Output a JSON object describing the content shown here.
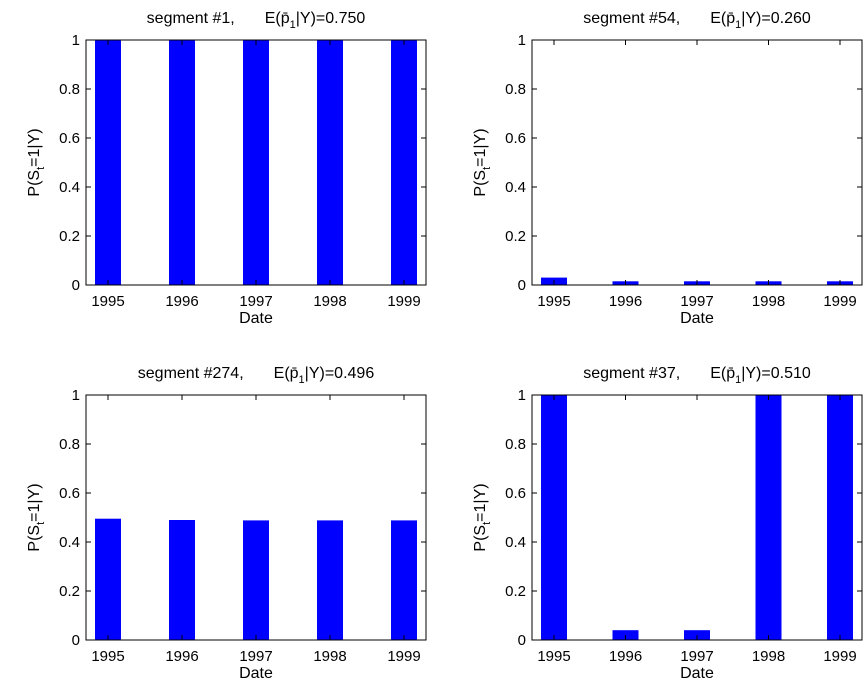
{
  "chart_data": [
    {
      "type": "bar",
      "title_prefix": "segment #1,",
      "title_expr": "E(p̄",
      "title_sub": "1",
      "title_suffix": "|Y)=0.750",
      "xlabel": "Date",
      "ylabel": "P(S",
      "ylabel_sub": "t",
      "ylabel_suffix": "=1|Y)",
      "categories": [
        "1995",
        "1996",
        "1997",
        "1998",
        "1999"
      ],
      "values": [
        1.0,
        1.0,
        1.0,
        1.0,
        1.0
      ],
      "ylim": [
        0,
        1
      ],
      "yticks": [
        "0",
        "0.2",
        "0.4",
        "0.6",
        "0.8",
        "1"
      ],
      "bar_color": "#0000ff"
    },
    {
      "type": "bar",
      "title_prefix": "segment #54,",
      "title_expr": "E(p̄",
      "title_sub": "1",
      "title_suffix": "|Y)=0.260",
      "xlabel": "Date",
      "ylabel": "P(S",
      "ylabel_sub": "t",
      "ylabel_suffix": "=1|Y)",
      "categories": [
        "1995",
        "1996",
        "1997",
        "1998",
        "1999"
      ],
      "values": [
        0.03,
        0.015,
        0.015,
        0.015,
        0.015
      ],
      "ylim": [
        0,
        1
      ],
      "yticks": [
        "0",
        "0.2",
        "0.4",
        "0.6",
        "0.8",
        "1"
      ],
      "bar_color": "#0000ff"
    },
    {
      "type": "bar",
      "title_prefix": "segment #274,",
      "title_expr": "E(p̄",
      "title_sub": "1",
      "title_suffix": "|Y)=0.496",
      "xlabel": "Date",
      "ylabel": "P(S",
      "ylabel_sub": "t",
      "ylabel_suffix": "=1|Y)",
      "categories": [
        "1995",
        "1996",
        "1997",
        "1998",
        "1999"
      ],
      "values": [
        0.495,
        0.49,
        0.488,
        0.488,
        0.488
      ],
      "ylim": [
        0,
        1
      ],
      "yticks": [
        "0",
        "0.2",
        "0.4",
        "0.6",
        "0.8",
        "1"
      ],
      "bar_color": "#0000ff"
    },
    {
      "type": "bar",
      "title_prefix": "segment #37,",
      "title_expr": "E(p̄",
      "title_sub": "1",
      "title_suffix": "|Y)=0.510",
      "xlabel": "Date",
      "ylabel": "P(S",
      "ylabel_sub": "t",
      "ylabel_suffix": "=1|Y)",
      "categories": [
        "1995",
        "1996",
        "1997",
        "1998",
        "1999"
      ],
      "values": [
        1.0,
        0.04,
        0.04,
        1.0,
        1.0
      ],
      "ylim": [
        0,
        1
      ],
      "yticks": [
        "0",
        "0.2",
        "0.4",
        "0.6",
        "0.8",
        "1"
      ],
      "bar_color": "#0000ff"
    }
  ]
}
